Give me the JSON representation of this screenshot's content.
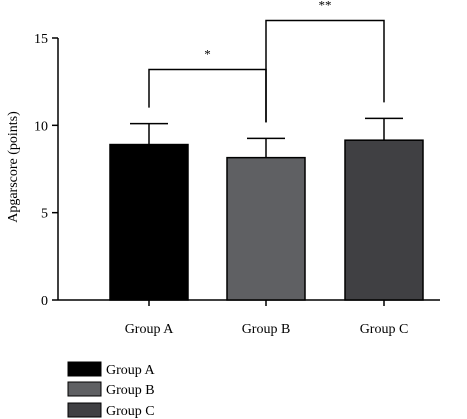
{
  "chart_data": {
    "type": "bar",
    "categories": [
      "Group A",
      "Group B",
      "Group C"
    ],
    "values": [
      8.9,
      8.15,
      9.15
    ],
    "error_upper": [
      10.1,
      9.25,
      10.4
    ],
    "colors": [
      "#000000",
      "#5f6063",
      "#404043"
    ],
    "ylabel": "Apgarscore (points)",
    "xlabel": "",
    "ylim": [
      0,
      15
    ],
    "yticks": [
      "0",
      "5",
      "10",
      "15"
    ],
    "ytick_values": [
      0,
      5,
      10,
      15
    ],
    "grid": false,
    "legend_position": "bottom-left",
    "legend": [
      "Group A",
      "Group B",
      "Group C"
    ],
    "significance": [
      {
        "from": 0,
        "to": 1,
        "label": "*",
        "y": 13.2
      },
      {
        "from": 1,
        "to": 2,
        "label": "**",
        "y": 16.0
      }
    ]
  }
}
